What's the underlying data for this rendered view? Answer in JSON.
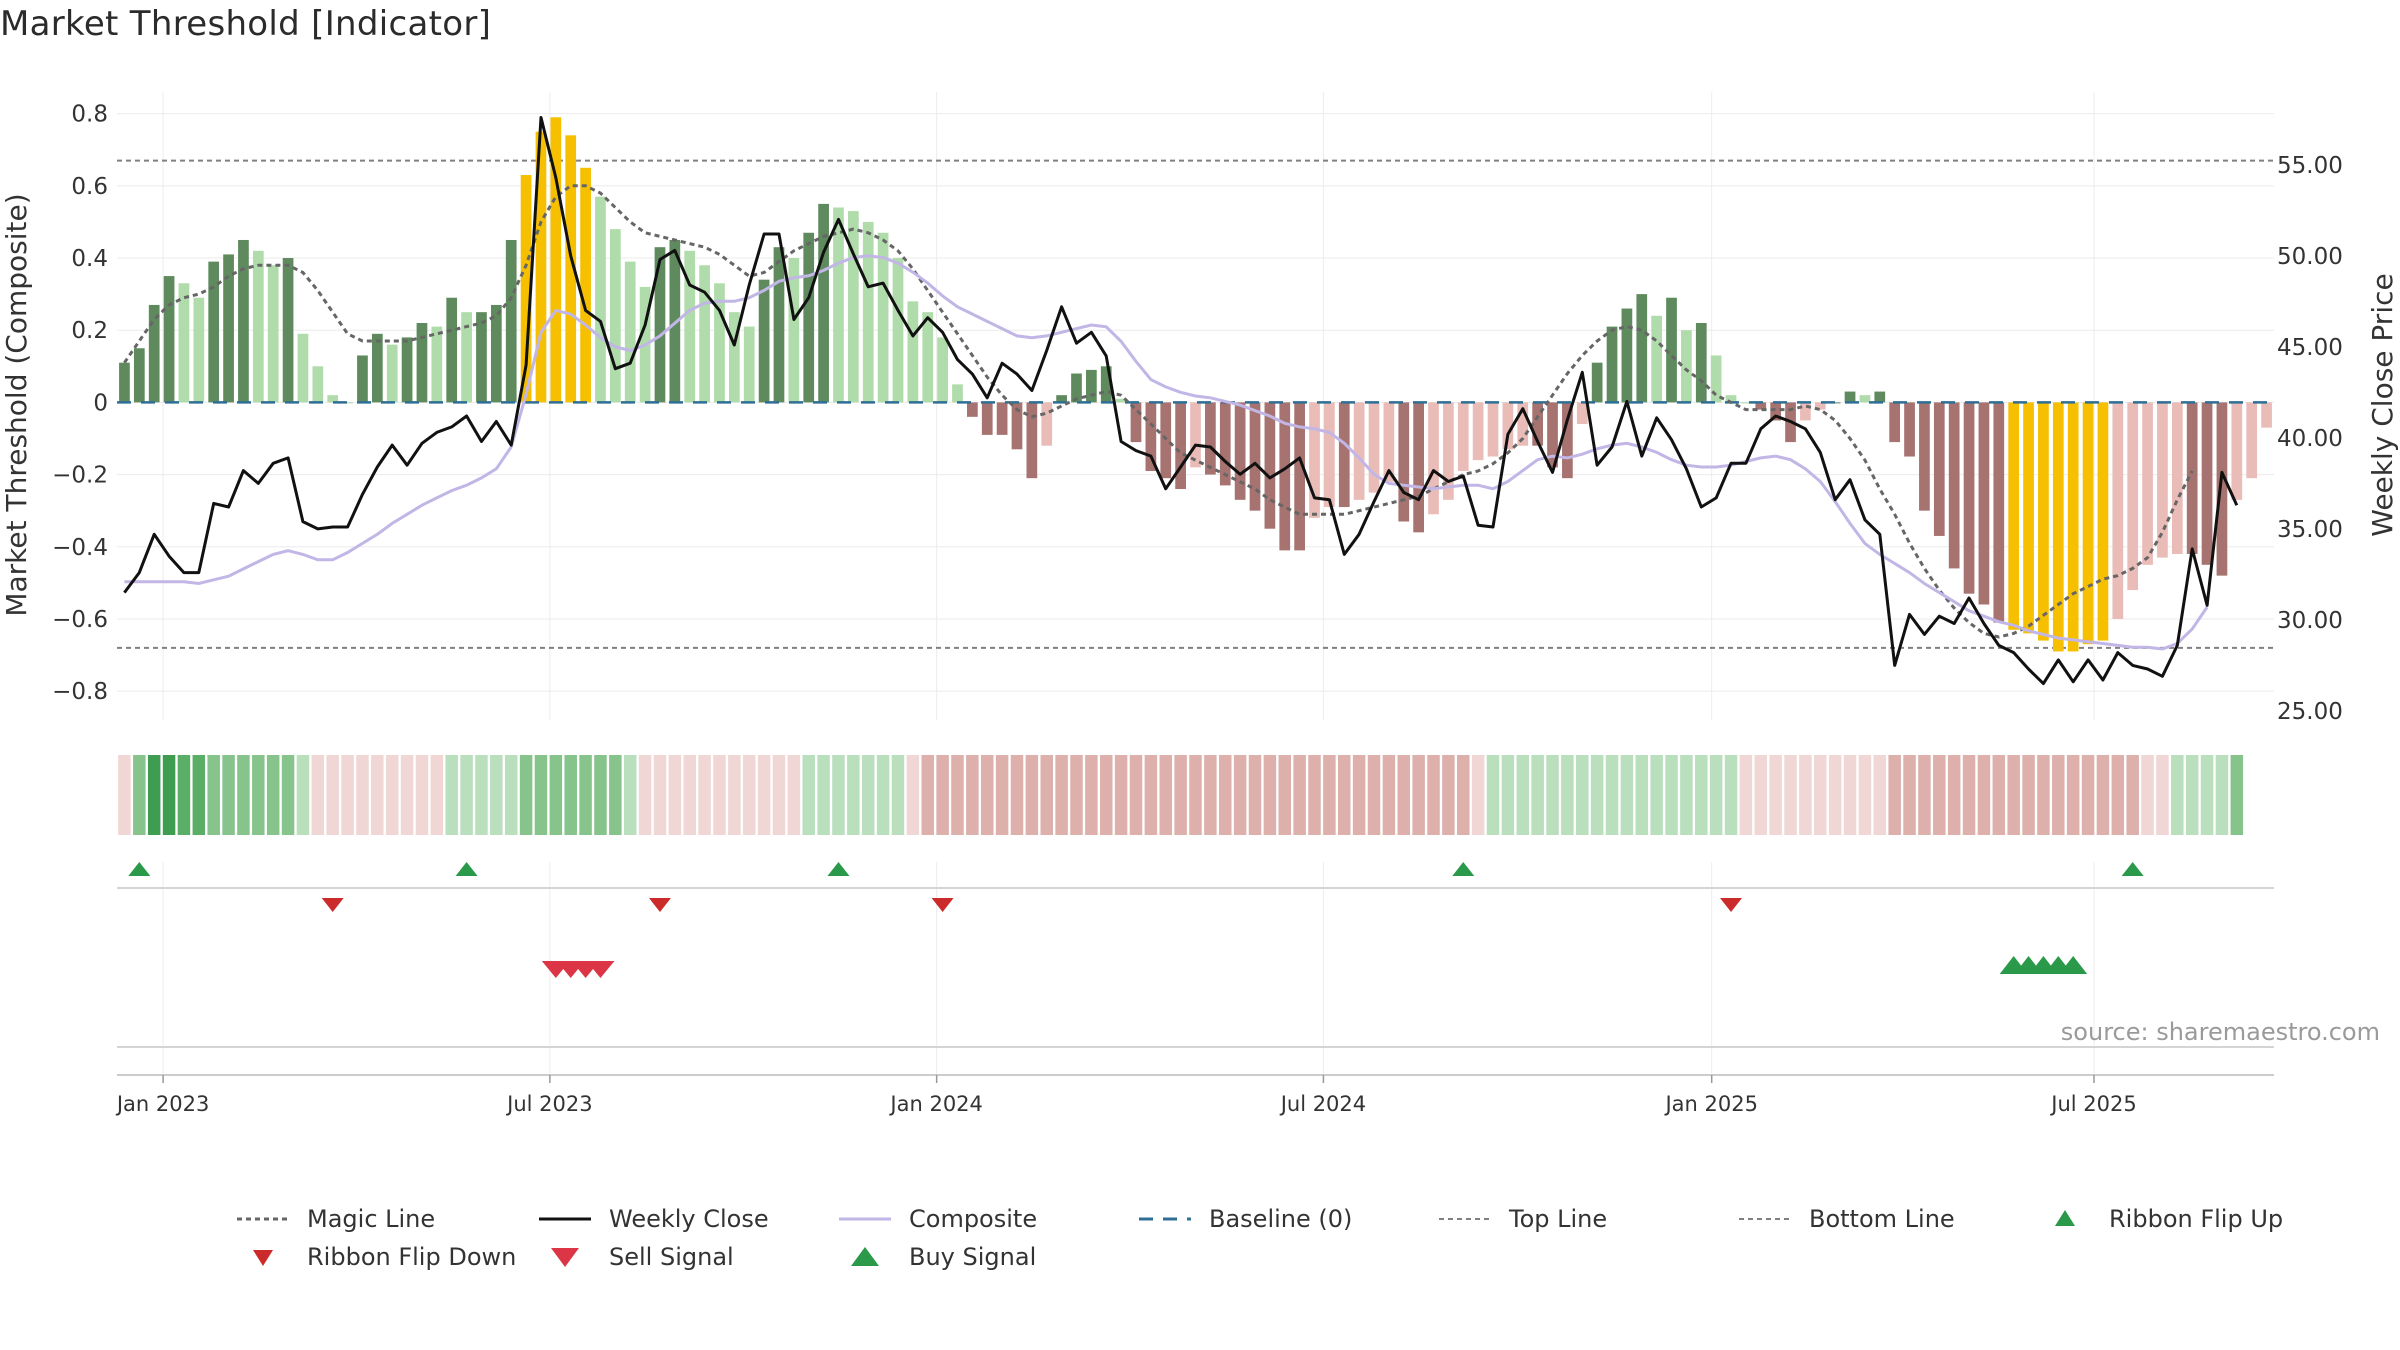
{
  "title": "Market Threshold [Indicator]",
  "source_label": "source: sharemaestro.com",
  "colors": {
    "bull_strong": "#5e8a5e",
    "bull_light": "#b0dbaa",
    "bear_strong": "#a67370",
    "bear_light": "#e9bcb7",
    "extreme": "#f6c000",
    "weekly_close": "#111111",
    "composite_line": "#c1b6e6",
    "magic_line": "#666666",
    "baseline": "#2f6f95",
    "threshold_line": "#808080",
    "buy": "#2a9a4a",
    "sell": "#dc3545",
    "ribbon_up": "#2a9a4a",
    "ribbon_down": "#cc2b2b"
  },
  "chart_data": {
    "type": "bar",
    "ylabel_left": "Market Threshold (Composite)",
    "ylabel_right": "Weekly Close Price",
    "ylim_left": [
      -0.88,
      0.86
    ],
    "ylim_right": [
      24.5,
      59.0
    ],
    "left_ticks": [
      {
        "value": 0.8,
        "label": "0.8"
      },
      {
        "value": 0.6,
        "label": "0.6"
      },
      {
        "value": 0.4,
        "label": "0.4"
      },
      {
        "value": 0.2,
        "label": "0.2"
      },
      {
        "value": 0,
        "label": "0"
      },
      {
        "value": -0.2,
        "label": "−0.2"
      },
      {
        "value": -0.4,
        "label": "−0.4"
      },
      {
        "value": -0.6,
        "label": "−0.6"
      },
      {
        "value": -0.8,
        "label": "−0.8"
      }
    ],
    "right_ticks": [
      {
        "value": 55,
        "label": "55.00"
      },
      {
        "value": 50,
        "label": "50.00"
      },
      {
        "value": 45,
        "label": "45.00"
      },
      {
        "value": 40,
        "label": "40.00"
      },
      {
        "value": 35,
        "label": "35.00"
      },
      {
        "value": 30,
        "label": "30.00"
      },
      {
        "value": 25,
        "label": "25.00"
      }
    ],
    "x_ticks": [
      {
        "index": 2.6,
        "label": "Jan 2023"
      },
      {
        "index": 28.6,
        "label": "Jul 2023"
      },
      {
        "index": 54.6,
        "label": "Jan 2024"
      },
      {
        "index": 80.6,
        "label": "Jul 2024"
      },
      {
        "index": 106.7,
        "label": "Jan 2025"
      },
      {
        "index": 132.4,
        "label": "Jul 2025"
      }
    ],
    "top_line": 0.67,
    "bottom_line": -0.68,
    "composite_bars": [
      0.11,
      0.15,
      0.27,
      0.35,
      0.33,
      0.29,
      0.39,
      0.41,
      0.45,
      0.42,
      0.38,
      0.4,
      0.19,
      0.1,
      0.02,
      0.0,
      0.13,
      0.19,
      0.16,
      0.18,
      0.22,
      0.21,
      0.29,
      0.25,
      0.25,
      0.27,
      0.45,
      0.63,
      0.75,
      0.79,
      0.74,
      0.65,
      0.57,
      0.48,
      0.39,
      0.32,
      0.43,
      0.45,
      0.42,
      0.38,
      0.33,
      0.25,
      0.21,
      0.34,
      0.43,
      0.4,
      0.47,
      0.55,
      0.54,
      0.53,
      0.5,
      0.47,
      0.4,
      0.28,
      0.25,
      0.18,
      0.05,
      -0.04,
      -0.09,
      -0.09,
      -0.13,
      -0.21,
      -0.12,
      0.02,
      0.08,
      0.09,
      0.1,
      0.01,
      -0.11,
      -0.19,
      -0.21,
      -0.24,
      -0.18,
      -0.2,
      -0.23,
      -0.27,
      -0.3,
      -0.35,
      -0.41,
      -0.41,
      -0.32,
      -0.29,
      -0.29,
      -0.27,
      -0.25,
      -0.22,
      -0.33,
      -0.36,
      -0.31,
      -0.27,
      -0.19,
      -0.16,
      -0.15,
      -0.13,
      -0.12,
      -0.12,
      -0.18,
      -0.21,
      -0.06,
      0.11,
      0.21,
      0.26,
      0.3,
      0.24,
      0.29,
      0.2,
      0.22,
      0.13,
      0.02,
      0.0,
      -0.02,
      -0.05,
      -0.11,
      -0.05,
      -0.02,
      0.0,
      0.03,
      0.02,
      0.03,
      -0.11,
      -0.15,
      -0.3,
      -0.37,
      -0.46,
      -0.53,
      -0.56,
      -0.61,
      -0.63,
      -0.64,
      -0.66,
      -0.69,
      -0.69,
      -0.67,
      -0.66,
      -0.6,
      -0.52,
      -0.45,
      -0.43,
      -0.42,
      -0.42,
      -0.45,
      -0.48,
      -0.27,
      -0.21,
      -0.07
    ],
    "weekly_close": [
      31.5,
      32.6,
      34.7,
      33.5,
      32.6,
      32.6,
      36.4,
      36.2,
      38.2,
      37.5,
      38.6,
      38.9,
      35.4,
      35.0,
      35.1,
      35.1,
      36.9,
      38.4,
      39.6,
      38.5,
      39.7,
      40.3,
      40.6,
      41.2,
      39.8,
      40.9,
      39.6,
      44.0,
      57.6,
      54.3,
      50.0,
      47.0,
      46.4,
      43.8,
      44.1,
      46.2,
      49.8,
      50.3,
      48.4,
      48.0,
      47.0,
      45.1,
      48.4,
      51.2,
      51.2,
      46.5,
      47.7,
      50.2,
      52.0,
      50.1,
      48.3,
      48.5,
      47.0,
      45.6,
      46.6,
      45.8,
      44.3,
      43.5,
      42.2,
      44.1,
      43.5,
      42.6,
      44.8,
      47.2,
      45.2,
      45.8,
      44.5,
      39.8,
      39.3,
      39.0,
      37.2,
      38.4,
      39.6,
      39.5,
      38.7,
      38.0,
      38.6,
      37.8,
      38.3,
      38.9,
      36.7,
      36.6,
      33.6,
      34.7,
      36.5,
      38.2,
      37.0,
      36.6,
      38.2,
      37.6,
      37.9,
      35.2,
      35.1,
      40.2,
      41.6,
      39.8,
      38.1,
      41.0,
      43.6,
      38.5,
      39.5,
      42.0,
      39.0,
      41.1,
      39.9,
      38.3,
      36.2,
      36.7,
      38.6,
      38.6,
      40.5,
      41.2,
      40.9,
      40.5,
      39.2,
      36.6,
      37.7,
      35.5,
      34.7,
      27.5,
      30.3,
      29.2,
      30.2,
      29.8,
      31.2,
      29.8,
      28.6,
      28.2,
      27.3,
      26.5,
      27.8,
      26.6,
      27.8,
      26.7,
      28.2,
      27.5,
      27.3,
      26.9,
      28.6,
      33.9,
      30.8,
      38.1,
      36.3
    ],
    "composite_line": [
      32.1,
      32.1,
      32.1,
      32.1,
      32.1,
      32.0,
      32.2,
      32.4,
      32.8,
      33.2,
      33.6,
      33.8,
      33.6,
      33.3,
      33.3,
      33.7,
      34.2,
      34.7,
      35.3,
      35.8,
      36.3,
      36.7,
      37.1,
      37.4,
      37.8,
      38.3,
      39.5,
      42.4,
      45.8,
      47.0,
      46.8,
      46.2,
      45.5,
      45.0,
      44.8,
      45.1,
      45.6,
      46.3,
      47.0,
      47.4,
      47.5,
      47.5,
      47.7,
      48.1,
      48.6,
      48.8,
      48.9,
      49.2,
      49.6,
      49.9,
      50.0,
      49.9,
      49.6,
      49.1,
      48.5,
      47.8,
      47.2,
      46.8,
      46.4,
      46.0,
      45.6,
      45.5,
      45.6,
      45.8,
      46.0,
      46.2,
      46.1,
      45.3,
      44.2,
      43.2,
      42.8,
      42.5,
      42.3,
      42.2,
      42.0,
      41.8,
      41.5,
      41.2,
      40.8,
      40.6,
      40.5,
      40.3,
      39.7,
      38.9,
      38.0,
      37.5,
      37.4,
      37.3,
      37.2,
      37.3,
      37.4,
      37.4,
      37.2,
      37.6,
      38.2,
      38.8,
      39.0,
      38.9,
      39.1,
      39.4,
      39.6,
      39.7,
      39.5,
      39.2,
      38.8,
      38.5,
      38.4,
      38.4,
      38.5,
      38.7,
      38.9,
      39.0,
      38.8,
      38.3,
      37.6,
      36.5,
      35.3,
      34.2,
      33.6,
      33.1,
      32.6,
      32.0,
      31.5,
      31.0,
      30.5,
      30.2,
      29.9,
      29.7,
      29.4,
      29.2,
      29.0,
      28.9,
      28.8,
      28.7,
      28.6,
      28.5,
      28.5,
      28.4,
      28.7,
      29.5,
      30.7
    ],
    "magic_line": [
      0.11,
      0.17,
      0.23,
      0.27,
      0.29,
      0.3,
      0.32,
      0.35,
      0.37,
      0.38,
      0.38,
      0.38,
      0.36,
      0.31,
      0.25,
      0.19,
      0.17,
      0.17,
      0.17,
      0.17,
      0.18,
      0.19,
      0.2,
      0.21,
      0.22,
      0.24,
      0.29,
      0.38,
      0.5,
      0.57,
      0.6,
      0.6,
      0.58,
      0.54,
      0.5,
      0.47,
      0.46,
      0.45,
      0.44,
      0.43,
      0.41,
      0.38,
      0.35,
      0.36,
      0.39,
      0.42,
      0.44,
      0.46,
      0.47,
      0.48,
      0.47,
      0.45,
      0.42,
      0.37,
      0.31,
      0.25,
      0.19,
      0.13,
      0.07,
      0.02,
      -0.02,
      -0.04,
      -0.03,
      -0.01,
      0.01,
      0.02,
      0.03,
      0.02,
      -0.02,
      -0.06,
      -0.1,
      -0.14,
      -0.16,
      -0.18,
      -0.2,
      -0.22,
      -0.24,
      -0.27,
      -0.29,
      -0.31,
      -0.31,
      -0.31,
      -0.31,
      -0.3,
      -0.29,
      -0.28,
      -0.27,
      -0.26,
      -0.24,
      -0.22,
      -0.2,
      -0.19,
      -0.17,
      -0.14,
      -0.1,
      -0.04,
      0.02,
      0.08,
      0.13,
      0.17,
      0.2,
      0.21,
      0.2,
      0.17,
      0.13,
      0.09,
      0.06,
      0.02,
      0.0,
      -0.02,
      -0.02,
      -0.02,
      -0.02,
      -0.01,
      -0.02,
      -0.05,
      -0.1,
      -0.16,
      -0.24,
      -0.31,
      -0.39,
      -0.46,
      -0.52,
      -0.57,
      -0.61,
      -0.64,
      -0.65,
      -0.64,
      -0.62,
      -0.59,
      -0.56,
      -0.53,
      -0.51,
      -0.49,
      -0.48,
      -0.46,
      -0.43,
      -0.36,
      -0.27,
      -0.19
    ],
    "ribbon": [
      -1,
      2,
      4,
      4,
      3,
      3,
      2,
      2,
      2,
      2,
      2,
      2,
      1,
      -1,
      -1,
      -1,
      -1,
      -1,
      -1,
      -1,
      -1,
      -1,
      1,
      1,
      1,
      1,
      1,
      2,
      2,
      2,
      2,
      2,
      2,
      2,
      1,
      -1,
      -1,
      -1,
      -1,
      -1,
      -1,
      -1,
      -1,
      -1,
      -1,
      -1,
      1,
      1,
      1,
      1,
      1,
      1,
      1,
      -1,
      -2,
      -2,
      -2,
      -2,
      -2,
      -2,
      -2,
      -2,
      -2,
      -2,
      -2,
      -2,
      -2,
      -2,
      -2,
      -2,
      -2,
      -2,
      -2,
      -2,
      -2,
      -2,
      -2,
      -2,
      -2,
      -2,
      -2,
      -2,
      -2,
      -2,
      -2,
      -2,
      -2,
      -2,
      -2,
      -2,
      -2,
      -1,
      1,
      1,
      1,
      1,
      1,
      1,
      1,
      1,
      1,
      1,
      1,
      1,
      1,
      1,
      1,
      1,
      1,
      -1,
      -1,
      -1,
      -1,
      -1,
      -1,
      -1,
      -1,
      -1,
      -1,
      -2,
      -2,
      -2,
      -2,
      -2,
      -2,
      -2,
      -2,
      -2,
      -2,
      -2,
      -2,
      -2,
      -2,
      -2,
      -2,
      -2,
      -1,
      -1,
      1,
      1,
      1,
      1,
      2
    ],
    "ribbon_flip_up": [
      1,
      23,
      48,
      90,
      135
    ],
    "ribbon_flip_down": [
      14,
      36,
      55,
      108
    ],
    "sell_signal": [
      29,
      30,
      31,
      32
    ],
    "buy_signal": [
      127,
      128,
      129,
      130,
      131
    ]
  },
  "legend": [
    {
      "key": "magic",
      "label": "Magic Line"
    },
    {
      "key": "close",
      "label": "Weekly Close"
    },
    {
      "key": "composite",
      "label": "Composite"
    },
    {
      "key": "baseline",
      "label": "Baseline (0)"
    },
    {
      "key": "top",
      "label": "Top Line"
    },
    {
      "key": "bottom",
      "label": "Bottom Line"
    },
    {
      "key": "flip_up",
      "label": "Ribbon Flip Up"
    },
    {
      "key": "flip_down",
      "label": "Ribbon Flip Down"
    },
    {
      "key": "sell",
      "label": "Sell Signal"
    },
    {
      "key": "buy",
      "label": "Buy Signal"
    }
  ]
}
